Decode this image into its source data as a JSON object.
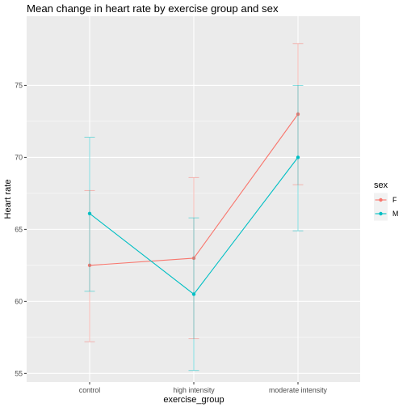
{
  "chart_data": {
    "type": "line",
    "title": "Mean change in heart rate by exercise group and sex",
    "xlabel": "exercise_group",
    "ylabel": "Heart rate",
    "categories": [
      "control",
      "high intensity",
      "moderate intensity"
    ],
    "ylim": [
      54.4,
      79.8
    ],
    "yticks": [
      55,
      60,
      65,
      70,
      75
    ],
    "grid": true,
    "legend": {
      "title": "sex",
      "position": "right"
    },
    "series": [
      {
        "name": "F",
        "color": "#F8766D",
        "values": [
          62.5,
          63.0,
          73.0
        ],
        "err_low": [
          57.2,
          57.4,
          68.1
        ],
        "err_high": [
          67.7,
          68.6,
          77.9
        ]
      },
      {
        "name": "M",
        "color": "#00BFC4",
        "values": [
          66.1,
          60.5,
          70.0
        ],
        "err_low": [
          60.7,
          55.2,
          64.9
        ],
        "err_high": [
          71.4,
          65.8,
          75.0
        ]
      }
    ]
  }
}
